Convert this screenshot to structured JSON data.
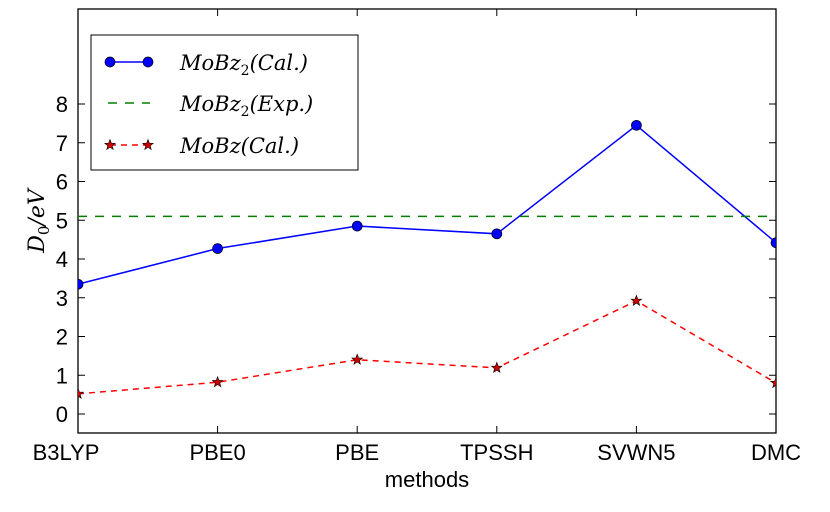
{
  "chart_data": {
    "type": "line",
    "title": "",
    "xlabel": "methods",
    "ylabel": "D0/eV",
    "categories": [
      "B3LYP",
      "PBE0",
      "PBE",
      "TPSSH",
      "SVWN5",
      "DMC"
    ],
    "yticks": [
      "0",
      "1",
      "2",
      "3",
      "4",
      "5",
      "6",
      "7",
      "8"
    ],
    "ylim": [
      -0.5,
      10
    ],
    "grid": false,
    "legend_position": "top-left",
    "series": [
      {
        "name": "MoBz2(Cal.)",
        "style": "solid line with circle markers",
        "color": "#0000ff",
        "values": [
          3.35,
          4.27,
          4.85,
          4.65,
          7.45,
          4.42
        ]
      },
      {
        "name": "MoBz2(Exp.)",
        "style": "dashed horizontal line",
        "color": "#008000",
        "values": [
          5.1,
          5.1,
          5.1,
          5.1,
          5.1,
          5.1
        ]
      },
      {
        "name": "MoBz(Cal.)",
        "style": "dashed line with star markers",
        "color": "#ff0000",
        "values": [
          0.52,
          0.82,
          1.4,
          1.19,
          2.92,
          0.8
        ]
      }
    ]
  }
}
